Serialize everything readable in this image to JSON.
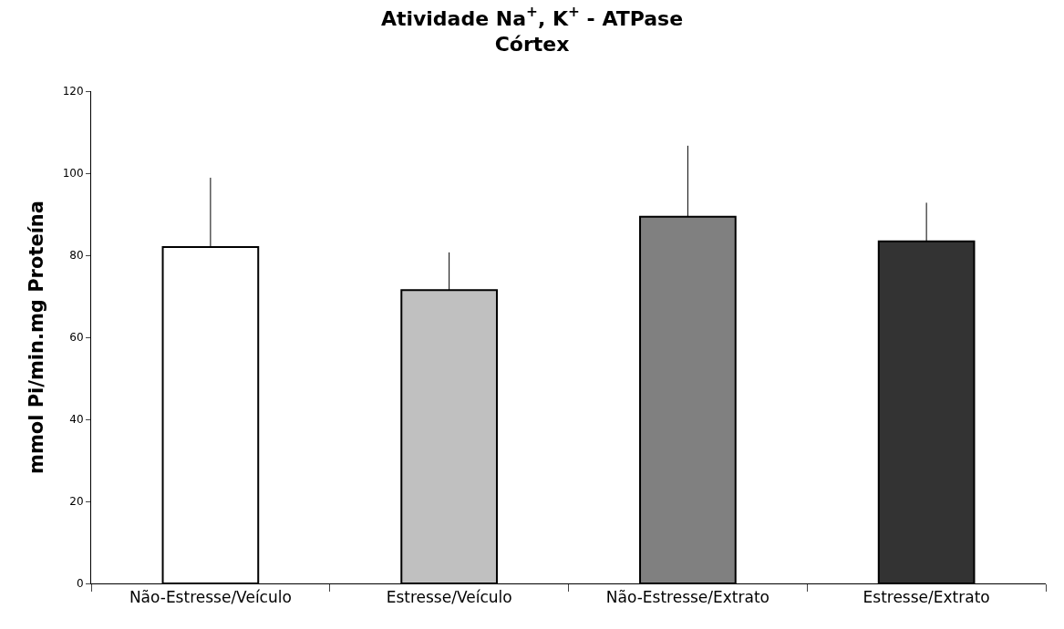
{
  "chart_data": {
    "type": "bar",
    "title": "Atividade Na$^{+}$, K$^{+}$ - ATPase",
    "subtitle": "Córtex",
    "ylabel": "mmol Pi/min.mg Proteína",
    "categories": [
      "Não-Estresse/Veículo",
      "Estresse/Veículo",
      "Não-Estresse/Extrato",
      "Estresse/Extrato"
    ],
    "values": [
      82,
      71.5,
      89.4,
      83.4
    ],
    "colors": [
      "#ffffff",
      "#c0c0c0",
      "#808080",
      "#333333"
    ],
    "errors": [
      [
        82,
        98.9
      ],
      [
        71.5,
        80.7
      ],
      [
        89.4,
        106.7
      ],
      [
        83.4,
        92.8
      ]
    ],
    "ylim": [
      0,
      120
    ],
    "yticks": [
      0,
      20,
      40,
      60,
      80,
      100,
      120
    ]
  }
}
